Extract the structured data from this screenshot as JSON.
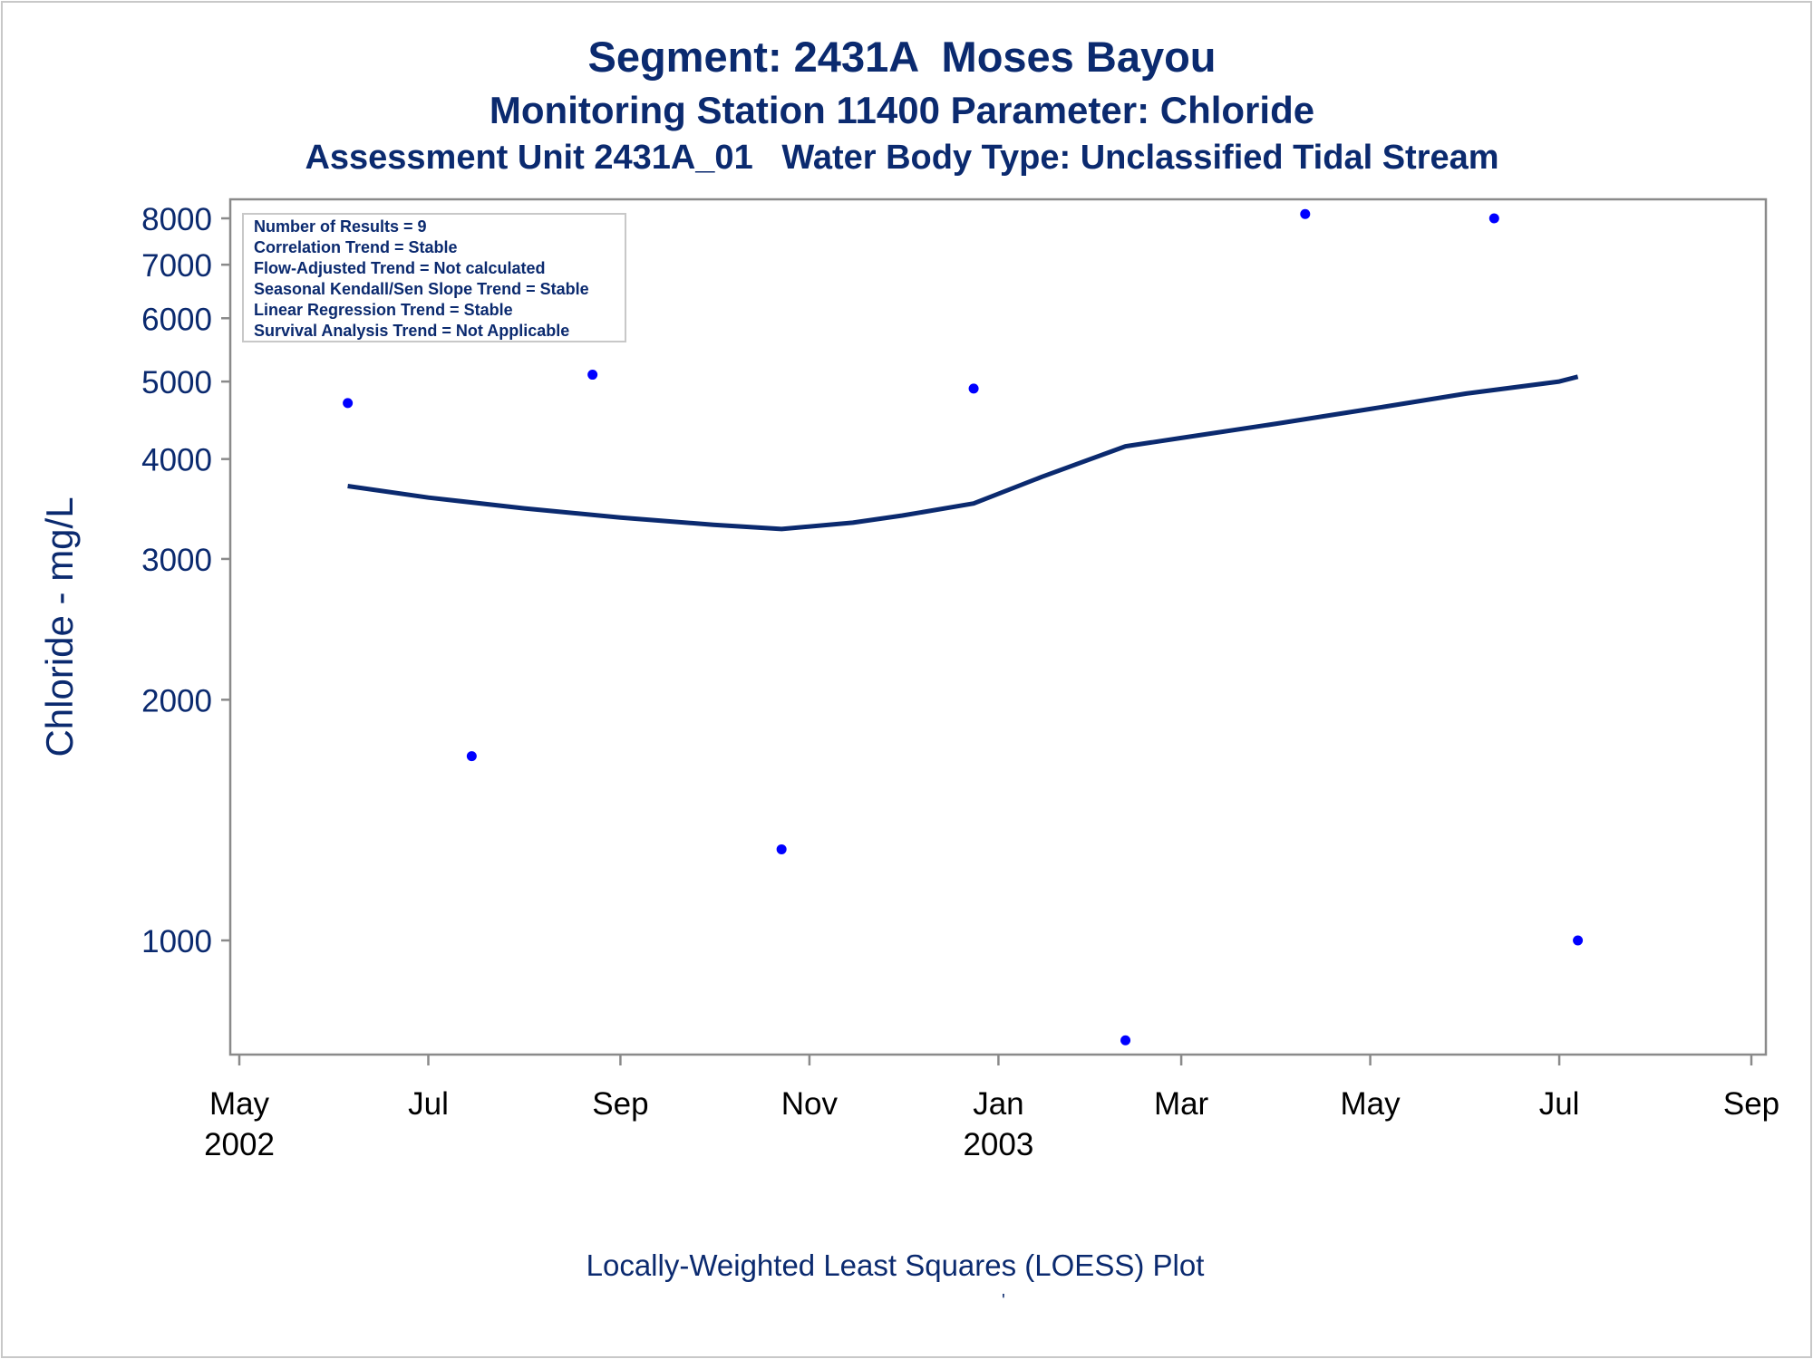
{
  "titles": {
    "line1": "Segment: 2431A  Moses Bayou",
    "line2": "Monitoring Station 11400 Parameter: Chloride",
    "line3": "Assessment Unit 2431A_01   Water Body Type: Unclassified Tidal Stream"
  },
  "footer": {
    "caption": "Locally-Weighted Least Squares (LOESS) Plot",
    "mark": "'"
  },
  "legend_box": {
    "lines": [
      "Number of Results = 9",
      "Correlation Trend = Stable",
      "Flow-Adjusted Trend = Not calculated",
      "Seasonal Kendall/Sen Slope Trend = Stable",
      "Linear Regression Trend = Stable",
      "Survival Analysis Trend = Not Applicable"
    ]
  },
  "colors": {
    "text": "#0b2a6f",
    "line": "#0b2a6f",
    "points": "#0000ff",
    "axis": "#8a8a8a"
  },
  "chart_data": {
    "type": "scatter",
    "ylabel": "Chloride - mg/L",
    "yscale": "log",
    "ylim": [
      800,
      8300
    ],
    "yticks": [
      1000,
      2000,
      3000,
      4000,
      5000,
      6000,
      7000,
      8000
    ],
    "ytick_labels": [
      "1000",
      "2000",
      "3000",
      "4000",
      "5000",
      "6000",
      "7000",
      "8000"
    ],
    "xlim": [
      "2002-05-01",
      "2003-09-01"
    ],
    "xticks": [
      {
        "date": "2002-05-01",
        "label": "May",
        "year": "2002"
      },
      {
        "date": "2002-07-01",
        "label": "Jul",
        "year": ""
      },
      {
        "date": "2002-09-01",
        "label": "Sep",
        "year": ""
      },
      {
        "date": "2002-11-01",
        "label": "Nov",
        "year": ""
      },
      {
        "date": "2003-01-01",
        "label": "Jan",
        "year": "2003"
      },
      {
        "date": "2003-03-01",
        "label": "Mar",
        "year": ""
      },
      {
        "date": "2003-05-01",
        "label": "May",
        "year": ""
      },
      {
        "date": "2003-07-01",
        "label": "Jul",
        "year": ""
      },
      {
        "date": "2003-09-01",
        "label": "Sep",
        "year": ""
      }
    ],
    "series": [
      {
        "kind": "points",
        "points": [
          {
            "x": "2002-06-05",
            "y": 4700
          },
          {
            "x": "2002-07-15",
            "y": 1700
          },
          {
            "x": "2002-08-23",
            "y": 5100
          },
          {
            "x": "2002-10-23",
            "y": 1300
          },
          {
            "x": "2002-12-24",
            "y": 4900
          },
          {
            "x": "2003-02-11",
            "y": 750
          },
          {
            "x": "2003-04-10",
            "y": 8100
          },
          {
            "x": "2003-06-10",
            "y": 8000
          },
          {
            "x": "2003-07-07",
            "y": 1000
          }
        ]
      },
      {
        "kind": "loess",
        "points": [
          {
            "x": "2002-06-05",
            "y": 3700
          },
          {
            "x": "2002-07-01",
            "y": 3580
          },
          {
            "x": "2002-08-01",
            "y": 3470
          },
          {
            "x": "2002-09-01",
            "y": 3380
          },
          {
            "x": "2002-10-01",
            "y": 3310
          },
          {
            "x": "2002-10-23",
            "y": 3270
          },
          {
            "x": "2002-11-15",
            "y": 3330
          },
          {
            "x": "2002-12-01",
            "y": 3400
          },
          {
            "x": "2002-12-24",
            "y": 3520
          },
          {
            "x": "2003-01-15",
            "y": 3800
          },
          {
            "x": "2003-02-11",
            "y": 4150
          },
          {
            "x": "2003-03-01",
            "y": 4250
          },
          {
            "x": "2003-04-01",
            "y": 4430
          },
          {
            "x": "2003-05-01",
            "y": 4620
          },
          {
            "x": "2003-06-01",
            "y": 4830
          },
          {
            "x": "2003-07-01",
            "y": 5000
          },
          {
            "x": "2003-07-07",
            "y": 5070
          }
        ]
      }
    ]
  }
}
